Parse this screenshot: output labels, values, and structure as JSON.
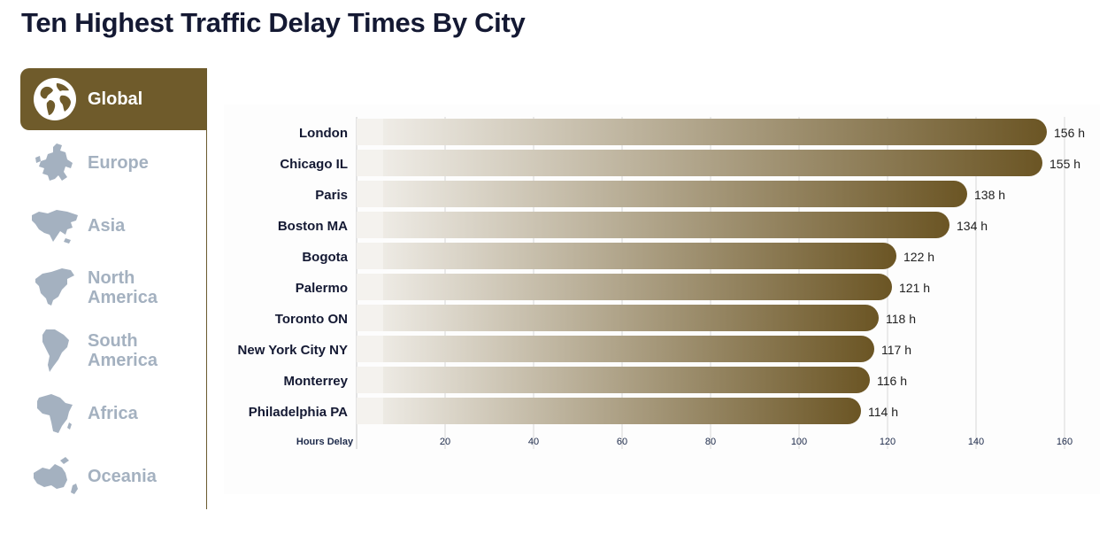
{
  "title": "Ten Highest Traffic Delay Times By City",
  "sidebar": {
    "items": [
      {
        "label": "Global",
        "icon": "globe-icon",
        "active": true
      },
      {
        "label": "Europe",
        "icon": "europe-map-icon",
        "active": false
      },
      {
        "label": "Asia",
        "icon": "asia-map-icon",
        "active": false
      },
      {
        "label": "North America",
        "icon": "north-america-map-icon",
        "active": false
      },
      {
        "label": "South America",
        "icon": "south-america-map-icon",
        "active": false
      },
      {
        "label": "Africa",
        "icon": "africa-map-icon",
        "active": false
      },
      {
        "label": "Oceania",
        "icon": "oceania-map-icon",
        "active": false
      }
    ]
  },
  "colors": {
    "accent": "#6f5b2b",
    "inactive": "#a4b1c0",
    "title": "#141933",
    "bar_start": "#f4f2ee",
    "bar_end": "#6b5524"
  },
  "chart_data": {
    "type": "bar",
    "orientation": "horizontal",
    "xlabel": "Hours Delay",
    "value_suffix": " h",
    "xlim": [
      0,
      160
    ],
    "xticks": [
      20,
      40,
      60,
      80,
      100,
      120,
      140,
      160
    ],
    "grid": true,
    "categories": [
      "London",
      "Chicago IL",
      "Paris",
      "Boston MA",
      "Bogota",
      "Palermo",
      "Toronto ON",
      "New York City NY",
      "Monterrey",
      "Philadelphia PA"
    ],
    "values": [
      156,
      155,
      138,
      134,
      122,
      121,
      118,
      117,
      116,
      114
    ]
  }
}
